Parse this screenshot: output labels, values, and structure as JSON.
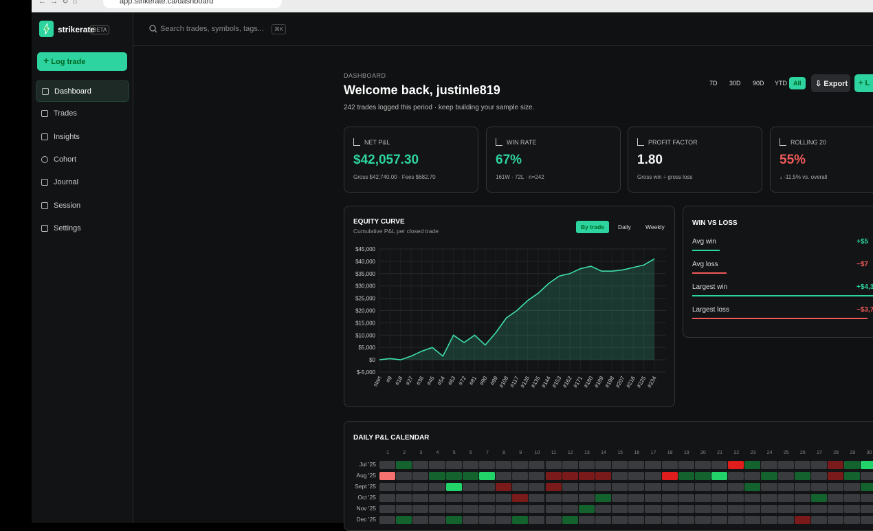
{
  "browser": {
    "url": "app.strikerate.ca/dashboard"
  },
  "sidebar": {
    "brand": "strikerate",
    "badge": "BETA",
    "cta": "Log trade",
    "nav": [
      "Dashboard",
      "Trades",
      "Insights",
      "Cohort",
      "Journal",
      "Session",
      "Settings"
    ],
    "active": "Dashboard"
  },
  "search": {
    "placeholder": "Search trades, symbols, tags...",
    "shortcut": "⌘K"
  },
  "header": {
    "eyebrow": "DASHBOARD",
    "title": "Welcome back, justinle819",
    "subtitle": "242 trades logged this period · keep building your sample size.",
    "ranges": [
      "7D",
      "30D",
      "90D",
      "YTD",
      "All"
    ],
    "active_range": "All",
    "export": "Export",
    "new": "L"
  },
  "stats": [
    {
      "label": "NET P&L",
      "value": "$42,057.30",
      "note": "Gross $42,740.00 · Fees $682.70",
      "color": "#2dd4a0"
    },
    {
      "label": "WIN RATE",
      "value": "67%",
      "note": "161W · 72L · n=242",
      "color": "#2dd4a0"
    },
    {
      "label": "PROFIT FACTOR",
      "value": "1.80",
      "note": "Gross win ÷ gross loss",
      "color": "#f4f4f5"
    },
    {
      "label": "ROLLING 20",
      "value": "55%",
      "note": "↓ -11.5% vs. overall",
      "color": "#f05a5a"
    }
  ],
  "chart_data": {
    "type": "line",
    "title": "EQUITY CURVE",
    "subtitle": "Cumulative P&L per closed trade",
    "toggles": [
      "By trade",
      "Daily",
      "Weekly"
    ],
    "active_toggle": "By trade",
    "categories": [
      "start",
      "#9",
      "#18",
      "#27",
      "#36",
      "#45",
      "#54",
      "#63",
      "#72",
      "#81",
      "#90",
      "#99",
      "#108",
      "#117",
      "#126",
      "#135",
      "#144",
      "#153",
      "#162",
      "#171",
      "#180",
      "#189",
      "#198",
      "#207",
      "#216",
      "#225",
      "#234"
    ],
    "values": [
      0,
      500,
      0,
      1500,
      3500,
      5000,
      1500,
      10000,
      7000,
      10000,
      6000,
      11000,
      17000,
      20000,
      24000,
      27000,
      31000,
      34000,
      35000,
      37000,
      38000,
      36000,
      36000,
      36500,
      37500,
      38500,
      41000
    ],
    "color": "#3ee0a8",
    "ylim": [
      -5000,
      45000
    ],
    "yticks": [
      {
        "value": 45000,
        "label": "$45,000"
      },
      {
        "value": 40000,
        "label": "$40,000"
      },
      {
        "value": 35000,
        "label": "$35,000"
      },
      {
        "value": 30000,
        "label": "$30,000"
      },
      {
        "value": 25000,
        "label": "$25,000"
      },
      {
        "value": 20000,
        "label": "$20,000"
      },
      {
        "value": 15000,
        "label": "$15,000"
      },
      {
        "value": 10000,
        "label": "$10,000"
      },
      {
        "value": 5000,
        "label": "$5,000"
      },
      {
        "value": 0,
        "label": "$0"
      },
      {
        "value": -5000,
        "label": "$-5,000"
      }
    ],
    "grid": true
  },
  "win_loss": {
    "title": "WIN VS LOSS",
    "rows": [
      {
        "label": "Avg win",
        "value": "+$5",
        "color": "#2dd4a0"
      },
      {
        "label": "Avg loss",
        "value": "−$7",
        "color": "#f05a5a"
      },
      {
        "label": "Largest win",
        "value": "+$4,3",
        "color": "#2dd4a0"
      },
      {
        "label": "Largest loss",
        "value": "−$3,7",
        "color": "#f05a5a"
      }
    ]
  },
  "calendar": {
    "title": "DAILY P&L CALENDAR",
    "days": [
      1,
      2,
      3,
      4,
      5,
      6,
      7,
      8,
      9,
      10,
      11,
      12,
      13,
      14,
      15,
      16,
      17,
      18,
      19,
      20,
      21,
      22,
      23,
      24,
      25,
      26,
      27,
      28,
      29,
      30
    ],
    "palette": {
      "n": "#3a3b3f",
      "g": "#14632f",
      "G": "#22d36a",
      "r": "#7a1a1a",
      "R": "#e01d1d",
      "p": "#f87171"
    },
    "months": [
      {
        "label": "Jul '25",
        "cells": "ngnnnnnnnnnnnnnnnnnnnRgnnnnrgG"
      },
      {
        "label": "Aug '25",
        "cells": "pnngggGnnnrrrrnnnRggGnngngnrgn"
      },
      {
        "label": "Sept '25",
        "cells": "nnnnGnnrnnrnnnnnnnnnnngnnnnnng"
      },
      {
        "label": "Oct '25",
        "cells": "nnnnnnnnrnnnngnnnnnnnnnnnngnnn"
      },
      {
        "label": "Nov '25",
        "cells": "nnnnnnnnnnnngnnnnnnnnnnnnnnnnn"
      },
      {
        "label": "Dec '25",
        "cells": "ngnngnnngnngnnnnnnnnnnnnnrnnnn"
      }
    ]
  }
}
